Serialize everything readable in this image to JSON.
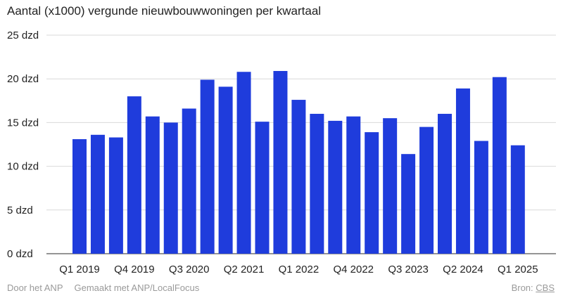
{
  "chart_data": {
    "type": "bar",
    "title": "Aantal (x1000) vergunde nieuwbouwwoningen per kwartaal",
    "unit_suffix": " dzd",
    "ylim": [
      0,
      25
    ],
    "yticks": [
      0,
      5,
      10,
      15,
      20,
      25
    ],
    "grid": true,
    "bar_color": "#1f3cdc",
    "categories": [
      "Q1 2019",
      "Q2 2019",
      "Q3 2019",
      "Q4 2019",
      "Q1 2020",
      "Q2 2020",
      "Q3 2020",
      "Q4 2020",
      "Q1 2021",
      "Q2 2021",
      "Q3 2021",
      "Q4 2021",
      "Q1 2022",
      "Q2 2022",
      "Q3 2022",
      "Q4 2022",
      "Q1 2023",
      "Q2 2023",
      "Q3 2023",
      "Q4 2023",
      "Q1 2024",
      "Q2 2024",
      "Q3 2024",
      "Q4 2024",
      "Q1 2025",
      "Q2 2025"
    ],
    "xtick_labels": [
      "Q1 2019",
      "Q4 2019",
      "Q3 2020",
      "Q2 2021",
      "Q1 2022",
      "Q4 2022",
      "Q3 2023",
      "Q2 2024",
      "Q1 2025"
    ],
    "values": [
      13.1,
      13.6,
      13.3,
      18.0,
      15.7,
      15.0,
      16.6,
      19.9,
      19.1,
      20.8,
      15.1,
      20.9,
      17.6,
      16.0,
      15.2,
      15.7,
      13.9,
      15.5,
      11.4,
      14.5,
      16.0,
      18.9,
      12.9,
      20.2,
      12.4,
      null
    ]
  },
  "footer": {
    "credit": "Door het ANP",
    "made_with": "Gemaakt met ANP/LocalFocus",
    "source_label": "Bron:",
    "source_name": "CBS"
  }
}
